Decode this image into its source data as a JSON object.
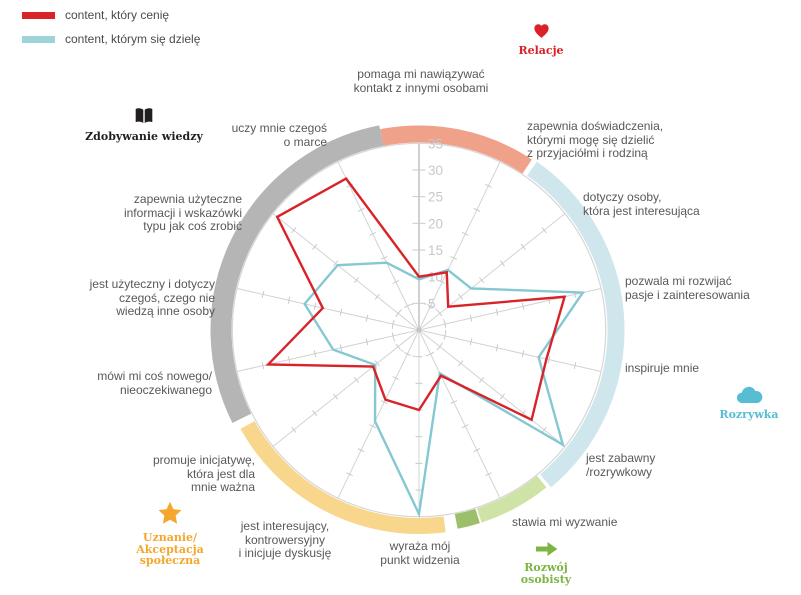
{
  "legend": {
    "items": [
      {
        "label": "content, który cenię",
        "color": "#d8232a"
      },
      {
        "label": "content, którym się dzielę",
        "color": "#9ed3da"
      }
    ]
  },
  "groups": [
    {
      "name": "Relacje",
      "color": "#da2128",
      "icon": "heart-icon"
    },
    {
      "name": "Zdobywanie wiedzy",
      "color": "#231f20",
      "icon": "book-icon"
    },
    {
      "name": "Rozrywka",
      "color": "#56bdd2",
      "icon": "cloud-icon"
    },
    {
      "name": "Uznanie/\nAkceptacja\nspołeczna",
      "color": "#f4a72c",
      "icon": "star-icon"
    },
    {
      "name": "Rozwój\nosobisty",
      "color": "#7cb544",
      "icon": "arrow-icon"
    }
  ],
  "chart_data": {
    "type": "radar",
    "axes": [
      {
        "label": "pomaga mi nawiązywać\nkontakt z innymi osobami"
      },
      {
        "label": "zapewnia doświadczenia,\nktórymi mogę się dzielić\nz przyjaciółmi i rodziną"
      },
      {
        "label": "dotyczy osoby,\nktóra jest interesująca"
      },
      {
        "label": "pozwala mi rozwijać\npasje i zainteresowania"
      },
      {
        "label": "inspiruje mnie"
      },
      {
        "label": "jest zabawny\n/rozrywkowy"
      },
      {
        "label": "stawia mi wyzwanie"
      },
      {
        "label": "wyraża mój\npunkt widzenia"
      },
      {
        "label": "jest interesujący,\nkontrowersyjny\ni inicjuje dyskusję"
      },
      {
        "label": "promuje inicjatywę,\nktóra jest dla\nmnie ważna"
      },
      {
        "label": "mówi mi coś nowego/\nnieoczekiwanego"
      },
      {
        "label": "jest użyteczny i dotyczy\nczegoś, czego nie\nwiedzą inne osoby"
      },
      {
        "label": "zapewnia użyteczne\ninformacji i wskazówki\ntypu jak coś zrobić"
      },
      {
        "label": "uczy mnie czegoś\no marce"
      }
    ],
    "series": [
      {
        "name": "content, który cenię",
        "color": "#d8232a",
        "values": [
          10,
          12,
          7,
          28,
          24.5,
          27,
          9.5,
          15,
          14.5,
          11,
          29,
          18.5,
          34,
          31.5
        ]
      },
      {
        "name": "content, którym się dzielę",
        "color": "#85c8d2",
        "values": [
          9.5,
          12.5,
          12.5,
          31.5,
          23,
          34.5,
          9,
          34.5,
          19,
          10.5,
          16.5,
          22,
          19.5,
          14
        ]
      }
    ],
    "radial_ticks": [
      5,
      10,
      15,
      20,
      25,
      30,
      35
    ],
    "rlim": [
      0,
      35
    ],
    "direction": "clockwise",
    "start": "top",
    "grid": "spokes-with-ticks, dashed inner circle at 5, outer circle at 35",
    "legend_position": "top-left",
    "ring_segments": [
      {
        "group": "Relacje",
        "color": "#f0a189"
      },
      {
        "group": "Rozrywka",
        "color": "#cfe6ed"
      },
      {
        "group": "Rozwój osobisty",
        "color": "#cfe3a7"
      },
      {
        "group": "Rozwój osobisty (accent)",
        "color": "#9cc069"
      },
      {
        "group": "Uznanie/Akceptacja społeczna",
        "color": "#f8d68c"
      },
      {
        "group": "Zdobywanie wiedzy",
        "color": "#b5b5b5"
      }
    ]
  }
}
